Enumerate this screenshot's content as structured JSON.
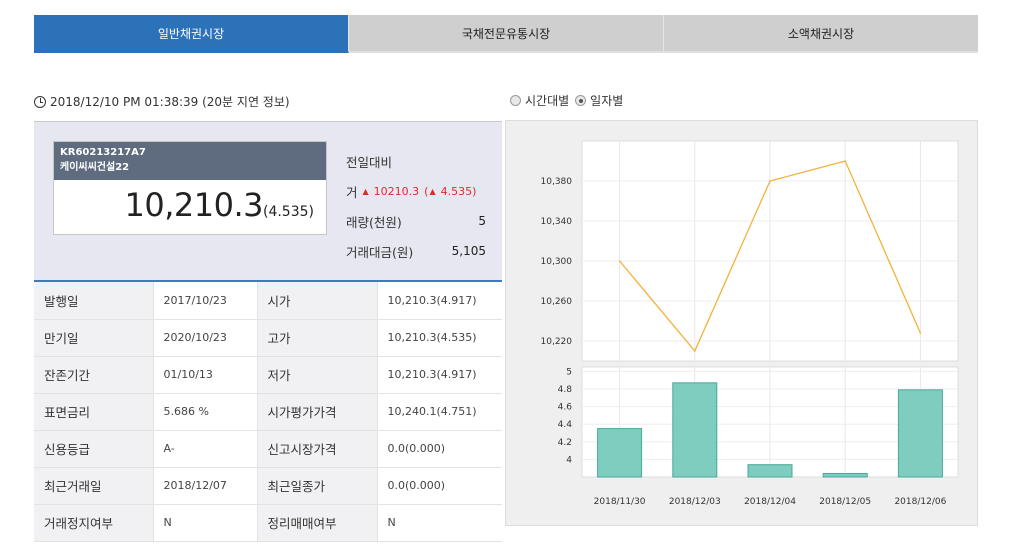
{
  "tabs": [
    {
      "label": "일반채권시장",
      "active": true
    },
    {
      "label": "국채전문유통시장",
      "active": false
    },
    {
      "label": "소액채권시장",
      "active": false
    }
  ],
  "timestamp": "2018/12/10 PM 01:38:39 (20분 지연 정보)",
  "view_options": [
    {
      "label": "시간대별",
      "selected": false
    },
    {
      "label": "일자별",
      "selected": true
    }
  ],
  "bond": {
    "code": "KR60213217A7",
    "name": "케이씨씨건설22",
    "price": "10,210.3",
    "yield": "(4.535)"
  },
  "side": {
    "change_label": "전일대비",
    "trade_label": "거",
    "trade_price": "10210.3",
    "trade_yield_open": "(",
    "trade_yield": "4.535)",
    "volume_label": "래량(천원)",
    "volume_value": "5",
    "amount_label": "거래대금(원)",
    "amount_value": "5,105"
  },
  "info_rows": [
    {
      "k1": "발행일",
      "v1": "2017/10/23",
      "k2": "시가",
      "v2": "10,210.3(4.917)"
    },
    {
      "k1": "만기일",
      "v1": "2020/10/23",
      "k2": "고가",
      "v2": "10,210.3(4.535)"
    },
    {
      "k1": "잔존기간",
      "v1": "01/10/13",
      "k2": "저가",
      "v2": "10,210.3(4.917)"
    },
    {
      "k1": "표면금리",
      "v1": "5.686 %",
      "k2": "시가평가가격",
      "v2": "10,240.1(4.751)"
    },
    {
      "k1": "신용등급",
      "v1": "A-",
      "k2": "신고시장가격",
      "v2": "0.0(0.000)"
    },
    {
      "k1": "최근거래일",
      "v1": "2018/12/07",
      "k2": "최근일종가",
      "v2": "0.0(0.000)"
    },
    {
      "k1": "거래정지여부",
      "v1": "N",
      "k2": "정리매매여부",
      "v2": "N"
    }
  ],
  "colors": {
    "line": "#f5b13c",
    "bar": "#7ecdbf",
    "bar_edge": "#4aa89a",
    "tab_active": "#2c72b8"
  },
  "chart_data": [
    {
      "type": "line",
      "x": [
        "2018/11/30",
        "2018/12/03",
        "2018/12/04",
        "2018/12/05",
        "2018/12/06"
      ],
      "values": [
        10300,
        10210,
        10380,
        10400,
        10228
      ],
      "yticks": [
        "10,220",
        "10,260",
        "10,300",
        "10,340",
        "10,380"
      ],
      "ylim": [
        10200,
        10420
      ],
      "grid": true
    },
    {
      "type": "bar",
      "categories": [
        "2018/11/30",
        "2018/12/03",
        "2018/12/04",
        "2018/12/05",
        "2018/12/06"
      ],
      "values": [
        4.35,
        4.87,
        3.94,
        3.84,
        4.79
      ],
      "yticks": [
        "4",
        "4.2",
        "4.4",
        "4.6",
        "4.8",
        "5"
      ],
      "ylim": [
        3.8,
        5.05
      ],
      "grid": true
    }
  ]
}
